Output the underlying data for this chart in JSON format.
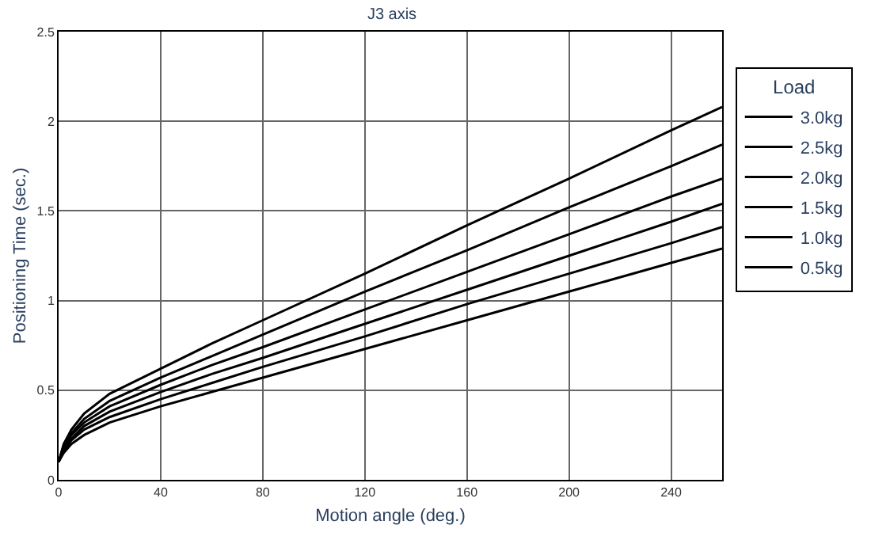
{
  "chart_data": {
    "type": "line",
    "title": "J3 axis",
    "xlabel": "Motion angle (deg.)",
    "ylabel": "Positioning Time (sec.)",
    "legend_title": "Load",
    "x": [
      0,
      2,
      5,
      10,
      20,
      40,
      60,
      80,
      120,
      160,
      200,
      240,
      260
    ],
    "series": [
      {
        "name": "3.0kg",
        "color": "#000000",
        "values": [
          0.1,
          0.2,
          0.28,
          0.37,
          0.48,
          0.62,
          0.76,
          0.89,
          1.15,
          1.42,
          1.68,
          1.95,
          2.08
        ]
      },
      {
        "name": "2.5kg",
        "color": "#000000",
        "values": [
          0.1,
          0.19,
          0.26,
          0.34,
          0.44,
          0.57,
          0.69,
          0.81,
          1.05,
          1.28,
          1.52,
          1.75,
          1.87
        ]
      },
      {
        "name": "2.0kg",
        "color": "#000000",
        "values": [
          0.1,
          0.18,
          0.25,
          0.32,
          0.41,
          0.53,
          0.64,
          0.74,
          0.95,
          1.16,
          1.37,
          1.58,
          1.68
        ]
      },
      {
        "name": "1.5kg",
        "color": "#000000",
        "values": [
          0.1,
          0.17,
          0.23,
          0.3,
          0.38,
          0.49,
          0.59,
          0.68,
          0.87,
          1.06,
          1.25,
          1.44,
          1.54
        ]
      },
      {
        "name": "1.0kg",
        "color": "#000000",
        "values": [
          0.1,
          0.16,
          0.22,
          0.28,
          0.35,
          0.45,
          0.54,
          0.63,
          0.8,
          0.98,
          1.15,
          1.32,
          1.41
        ]
      },
      {
        "name": "0.5kg",
        "color": "#000000",
        "values": [
          0.1,
          0.15,
          0.2,
          0.25,
          0.32,
          0.41,
          0.49,
          0.57,
          0.73,
          0.89,
          1.05,
          1.21,
          1.29
        ]
      }
    ],
    "xlim": [
      0,
      260
    ],
    "xticks": [
      0,
      40,
      80,
      120,
      160,
      200,
      240
    ],
    "ylim": [
      0,
      2.5
    ],
    "yticks": [
      0,
      0.5,
      1,
      1.5,
      2,
      2.5
    ],
    "grid": true,
    "legend": "top right",
    "marker": "none",
    "line_style": "solid"
  }
}
